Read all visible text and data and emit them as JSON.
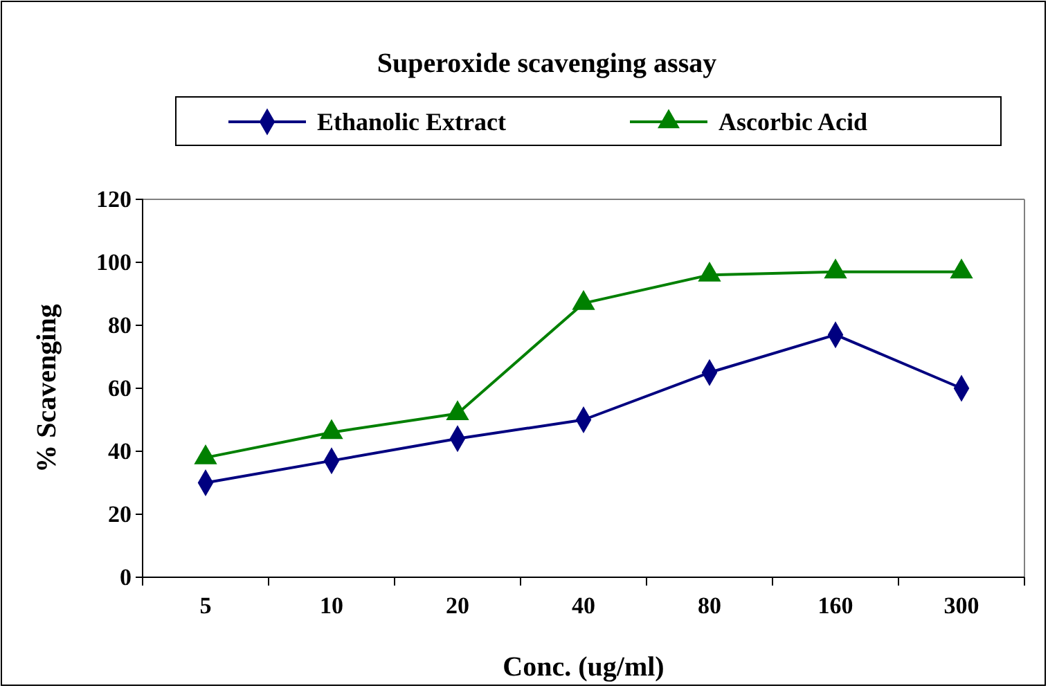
{
  "chart_data": {
    "type": "line",
    "title": "Superoxide scavenging assay",
    "xlabel": "Conc. (ug/ml)",
    "ylabel": "% Scavenging",
    "categories": [
      "5",
      "10",
      "20",
      "40",
      "80",
      "160",
      "300"
    ],
    "series": [
      {
        "name": "Ethanolic Extract",
        "color": "#000080",
        "marker": "diamond",
        "values": [
          30,
          37,
          44,
          50,
          65,
          77,
          60
        ]
      },
      {
        "name": "Ascorbic Acid",
        "color": "#008000",
        "marker": "triangle",
        "values": [
          38,
          46,
          52,
          87,
          96,
          97,
          97
        ]
      }
    ],
    "ylim": [
      0,
      120
    ],
    "yticks": [
      0,
      20,
      40,
      60,
      80,
      100,
      120
    ],
    "grid": false,
    "legend": "top",
    "line_style": "solid"
  }
}
